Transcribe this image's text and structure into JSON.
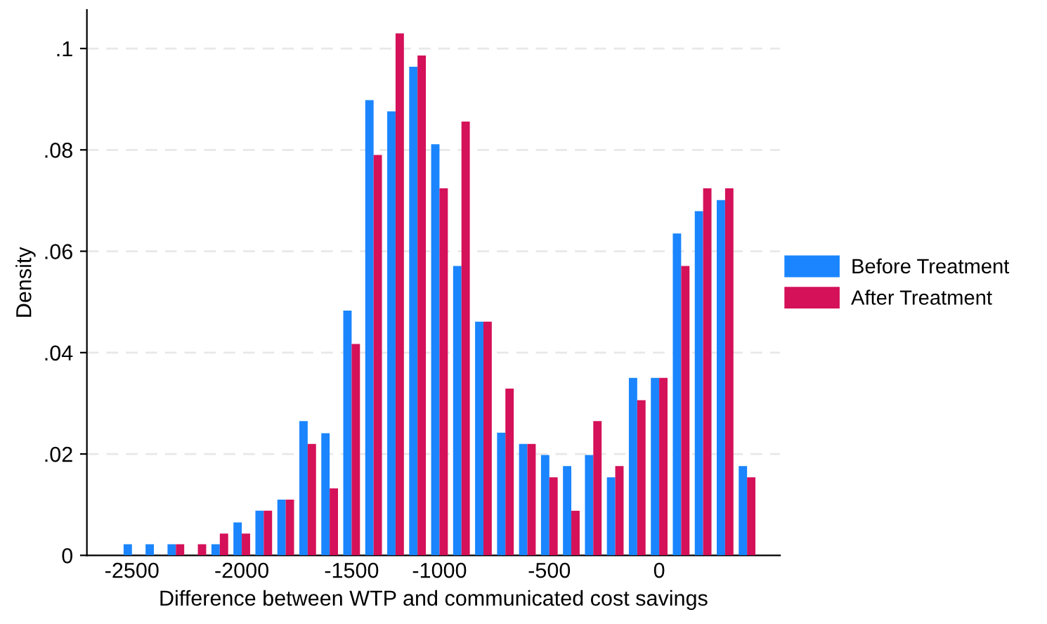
{
  "chart_data": {
    "type": "bar",
    "xlabel": "Difference between WTP and communicated cost savings",
    "ylabel": "Density",
    "categories": [
      "-2500",
      null,
      null,
      null,
      null,
      "-2000",
      null,
      null,
      null,
      null,
      "-1500",
      null,
      null,
      null,
      "-1000",
      null,
      null,
      null,
      null,
      "-500",
      null,
      null,
      null,
      null,
      "0",
      null,
      null,
      null,
      null
    ],
    "series": [
      {
        "name": "Before Treatment",
        "color": "#1a85ff",
        "values": [
          0.0022,
          0.0022,
          0.0022,
          0,
          0.0022,
          0.0065,
          0.0088,
          0.011,
          0.0265,
          0.0241,
          0.0483,
          0.0898,
          0.0876,
          0.0964,
          0.0811,
          0.0571,
          0.0461,
          0.0242,
          0.022,
          0.0198,
          0.0176,
          0.0198,
          0.0154,
          0.035,
          0.035,
          0.0635,
          0.0679,
          0.0701,
          0.0176
        ]
      },
      {
        "name": "After Treatment",
        "color": "#d41159",
        "values": [
          0,
          0,
          0.0022,
          0.0022,
          0.0043,
          0.0043,
          0.0088,
          0.011,
          0.022,
          0.0132,
          0.0417,
          0.079,
          0.103,
          0.0986,
          0.0724,
          0.0856,
          0.0461,
          0.0329,
          0.022,
          0.0154,
          0.0088,
          0.0265,
          0.0176,
          0.0306,
          0.035,
          0.0571,
          0.0724,
          0.0724,
          0.0154
        ]
      }
    ],
    "ylim": [
      0,
      0.1076
    ],
    "yticks": [
      0,
      {
        "value": 0.02,
        "label": ".02"
      },
      {
        "value": 0.04,
        "label": ".04"
      },
      {
        "value": 0.06,
        "label": ".06"
      },
      {
        "value": 0.08,
        "label": ".08"
      },
      {
        "value": 0.1,
        "label": ".1"
      }
    ],
    "grid": "y",
    "legend": "right"
  }
}
